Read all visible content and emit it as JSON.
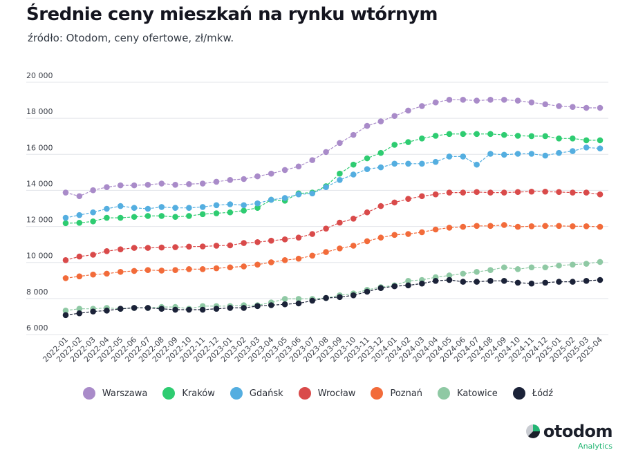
{
  "title": "Średnie ceny mieszkań na rynku wtórnym",
  "subtitle": "źródło: Otodom, ceny ofertowe, zł/mkw.",
  "logo": {
    "name": "otodom",
    "sub": "Analytics"
  },
  "chart_data": {
    "type": "line",
    "ylim": [
      6000,
      20000
    ],
    "yticks": [
      6000,
      8000,
      10000,
      12000,
      14000,
      16000,
      18000,
      20000
    ],
    "ytick_labels": [
      "6 000",
      "8 000",
      "10 000",
      "12 000",
      "14 000",
      "16 000",
      "18 000",
      "20 000"
    ],
    "grid": true,
    "legend_position": "bottom",
    "x": [
      "2022-01",
      "2022-02",
      "2022-03",
      "2022-04",
      "2022-05",
      "2022-06",
      "2022-07",
      "2022-08",
      "2022-09",
      "2022-10",
      "2022-11",
      "2022-12",
      "2023-01",
      "2023-02",
      "2023-03",
      "2023-04",
      "2023-05",
      "2023-06",
      "2023-07",
      "2023-08",
      "2023-09",
      "2023-10",
      "2023-11",
      "2023-12",
      "2024-01",
      "2024-02",
      "2024-03",
      "2024-04",
      "2024-05",
      "2024-06",
      "2024-07",
      "2024-08",
      "2024-09",
      "2024-10",
      "2024-11",
      "2024-12",
      "2025-01",
      "2025-02",
      "2025-03",
      "2025-04"
    ],
    "x_tick_labels": [
      "2022-01",
      "2022-02",
      "2022-03",
      "2022-04",
      "2022-05",
      "2022-06",
      "2022-07",
      "2022-08",
      "2022-09",
      "2022-10",
      "2022-11",
      "2022-12",
      "2023-01",
      "2023-02",
      "2023-03",
      "2023-04",
      "2023-05",
      "2023-06",
      "2023-07",
      "2023-08",
      "2023-09",
      "2023-10",
      "2023-11",
      "2023-12",
      "2024-01",
      "2024-02",
      "2024-03",
      "2024-04",
      "2024-05",
      "2024-06",
      "2024-07",
      "2024-08",
      "2024-09",
      "2024-10",
      "2024-11",
      "2024-12",
      "2025-01",
      "2025-02",
      "2025-03",
      "2025-04"
    ],
    "series": [
      {
        "name": "Warszawa",
        "color": "#a98bc9",
        "values": [
          13650,
          13450,
          13780,
          13950,
          14050,
          14050,
          14080,
          14150,
          14080,
          14120,
          14150,
          14250,
          14350,
          14400,
          14550,
          14700,
          14900,
          15100,
          15450,
          15900,
          16400,
          16850,
          17350,
          17600,
          17900,
          18200,
          18450,
          18650,
          18800,
          18800,
          18750,
          18800,
          18800,
          18750,
          18650,
          18550,
          18450,
          18400,
          18350,
          18350
        ]
      },
      {
        "name": "Kraków",
        "color": "#2ecc71",
        "values": [
          11950,
          11970,
          12050,
          12250,
          12250,
          12300,
          12350,
          12350,
          12300,
          12350,
          12450,
          12500,
          12550,
          12650,
          12800,
          13250,
          13200,
          13600,
          13650,
          14000,
          14700,
          15200,
          15550,
          15850,
          16300,
          16450,
          16650,
          16800,
          16900,
          16900,
          16900,
          16900,
          16850,
          16800,
          16780,
          16780,
          16650,
          16650,
          16550,
          16550
        ]
      },
      {
        "name": "Gdańsk",
        "color": "#54aee0",
        "values": [
          12250,
          12400,
          12550,
          12750,
          12900,
          12800,
          12750,
          12850,
          12800,
          12800,
          12850,
          12950,
          13000,
          12950,
          13050,
          13250,
          13350,
          13550,
          13600,
          13950,
          14350,
          14650,
          14950,
          15050,
          15250,
          15250,
          15250,
          15350,
          15650,
          15650,
          15200,
          15800,
          15750,
          15800,
          15800,
          15700,
          15850,
          15950,
          16150,
          16100
        ]
      },
      {
        "name": "Wrocław",
        "color": "#d94a4a",
        "values": [
          9900,
          10100,
          10200,
          10400,
          10500,
          10580,
          10580,
          10600,
          10620,
          10650,
          10660,
          10700,
          10720,
          10850,
          10900,
          10980,
          11050,
          11150,
          11350,
          11650,
          11980,
          12200,
          12550,
          12900,
          13100,
          13300,
          13450,
          13550,
          13650,
          13650,
          13680,
          13650,
          13650,
          13680,
          13700,
          13700,
          13680,
          13650,
          13650,
          13550
        ]
      },
      {
        "name": "Poznań",
        "color": "#f26b3a",
        "values": [
          8900,
          9000,
          9100,
          9150,
          9250,
          9300,
          9350,
          9320,
          9350,
          9400,
          9400,
          9450,
          9500,
          9550,
          9650,
          9780,
          9900,
          9980,
          10150,
          10350,
          10550,
          10700,
          10950,
          11150,
          11300,
          11350,
          11450,
          11600,
          11700,
          11750,
          11800,
          11800,
          11850,
          11750,
          11780,
          11800,
          11800,
          11780,
          11780,
          11750
        ]
      },
      {
        "name": "Katowice",
        "color": "#8fc9a4",
        "values": [
          7100,
          7200,
          7200,
          7250,
          7200,
          7250,
          7250,
          7300,
          7300,
          7200,
          7350,
          7350,
          7350,
          7400,
          7400,
          7550,
          7750,
          7750,
          7750,
          7800,
          7950,
          8050,
          8250,
          8400,
          8500,
          8750,
          8800,
          8950,
          9050,
          9150,
          9250,
          9350,
          9500,
          9400,
          9500,
          9500,
          9600,
          9650,
          9700,
          9800
        ]
      },
      {
        "name": "Łódź",
        "color": "#1b2238",
        "values": [
          6850,
          6950,
          7050,
          7100,
          7200,
          7250,
          7250,
          7200,
          7150,
          7150,
          7150,
          7200,
          7250,
          7250,
          7350,
          7400,
          7450,
          7500,
          7650,
          7800,
          7850,
          7950,
          8150,
          8350,
          8450,
          8500,
          8600,
          8750,
          8800,
          8700,
          8700,
          8750,
          8750,
          8650,
          8600,
          8650,
          8700,
          8700,
          8750,
          8800
        ]
      }
    ]
  }
}
